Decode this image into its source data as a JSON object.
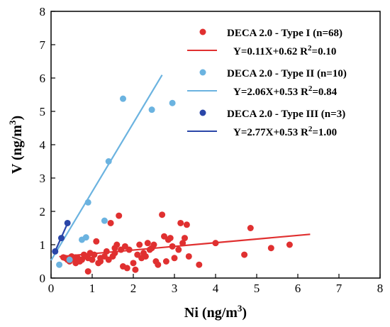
{
  "chart_data": {
    "type": "scatter",
    "x_axis": {
      "title": "Ni (ng/m",
      "title_sup": "3",
      "title_end": ")",
      "range": [
        0,
        8
      ],
      "ticks": [
        "0",
        "1",
        "2",
        "3",
        "4",
        "5",
        "6",
        "7",
        "8"
      ]
    },
    "y_axis": {
      "title": "V (ng/m",
      "title_sup": "3",
      "title_end": ")",
      "range": [
        0,
        8
      ],
      "ticks": [
        "0",
        "1",
        "2",
        "3",
        "4",
        "5",
        "6",
        "7",
        "8"
      ]
    },
    "grid": false,
    "legend_position": "top-right",
    "series": [
      {
        "name": "DECA 2.0 - Type I (n=68)",
        "color": "#e03030",
        "fit": {
          "label": "Y=0.11X+0.62 R",
          "label_sup": "2",
          "label_end": "=0.10",
          "slope": 0.11,
          "intercept": 0.62,
          "x_range": [
            0.2,
            6.3
          ]
        },
        "points": [
          [
            0.3,
            0.62
          ],
          [
            0.35,
            0.6
          ],
          [
            0.4,
            0.55
          ],
          [
            0.45,
            0.5
          ],
          [
            0.5,
            0.65
          ],
          [
            0.55,
            0.58
          ],
          [
            0.6,
            0.45
          ],
          [
            0.65,
            0.6
          ],
          [
            0.7,
            0.5
          ],
          [
            0.75,
            0.55
          ],
          [
            0.8,
            0.7
          ],
          [
            0.85,
            0.65
          ],
          [
            0.9,
            0.6
          ],
          [
            0.9,
            0.2
          ],
          [
            0.95,
            0.75
          ],
          [
            1.0,
            0.55
          ],
          [
            1.05,
            0.7
          ],
          [
            1.1,
            1.1
          ],
          [
            1.15,
            0.45
          ],
          [
            1.2,
            0.5
          ],
          [
            1.3,
            0.65
          ],
          [
            1.35,
            0.8
          ],
          [
            1.4,
            0.55
          ],
          [
            1.45,
            1.65
          ],
          [
            1.5,
            0.65
          ],
          [
            1.55,
            0.9
          ],
          [
            1.6,
            1.0
          ],
          [
            1.65,
            1.87
          ],
          [
            1.7,
            0.85
          ],
          [
            1.75,
            0.35
          ],
          [
            1.8,
            0.95
          ],
          [
            1.85,
            0.3
          ],
          [
            1.9,
            0.85
          ],
          [
            2.0,
            0.45
          ],
          [
            2.05,
            0.25
          ],
          [
            2.1,
            0.7
          ],
          [
            2.15,
            1.0
          ],
          [
            2.2,
            0.6
          ],
          [
            2.3,
            0.65
          ],
          [
            2.35,
            1.05
          ],
          [
            2.4,
            0.85
          ],
          [
            2.45,
            0.9
          ],
          [
            2.5,
            1.0
          ],
          [
            2.55,
            0.5
          ],
          [
            2.6,
            0.4
          ],
          [
            2.7,
            1.9
          ],
          [
            2.75,
            1.25
          ],
          [
            2.8,
            0.5
          ],
          [
            2.85,
            1.15
          ],
          [
            2.9,
            1.2
          ],
          [
            3.0,
            0.6
          ],
          [
            3.1,
            0.85
          ],
          [
            3.2,
            1.05
          ],
          [
            3.25,
            1.2
          ],
          [
            3.3,
            1.6
          ],
          [
            3.35,
            0.65
          ],
          [
            3.6,
            0.4
          ],
          [
            4.0,
            1.05
          ],
          [
            4.7,
            0.7
          ],
          [
            4.85,
            1.5
          ],
          [
            5.35,
            0.9
          ],
          [
            5.8,
            1.0
          ],
          [
            0.6,
            0.62
          ],
          [
            1.2,
            0.6
          ],
          [
            1.55,
            0.75
          ],
          [
            2.25,
            0.75
          ],
          [
            2.95,
            0.95
          ],
          [
            3.15,
            1.65
          ]
        ]
      },
      {
        "name": "DECA 2.0 - Type II (n=10)",
        "color": "#6bb3e0",
        "fit": {
          "label": "Y=2.06X+0.53 R",
          "label_sup": "2",
          "label_end": "=0.84",
          "slope": 2.06,
          "intercept": 0.53,
          "x_range": [
            0.0,
            2.7
          ]
        },
        "points": [
          [
            0.2,
            0.4
          ],
          [
            0.45,
            0.55
          ],
          [
            0.75,
            1.15
          ],
          [
            0.85,
            1.22
          ],
          [
            0.9,
            2.27
          ],
          [
            1.3,
            1.72
          ],
          [
            1.4,
            3.5
          ],
          [
            1.75,
            5.38
          ],
          [
            2.45,
            5.05
          ],
          [
            2.95,
            5.25
          ]
        ]
      },
      {
        "name": "DECA 2.0 - Type III (n=3)",
        "color": "#2a46a8",
        "fit": {
          "label": "Y=2.77X+0.53 R",
          "label_sup": "2",
          "label_end": "=1.00",
          "slope": 2.77,
          "intercept": 0.53,
          "x_range": [
            0.1,
            0.42
          ]
        },
        "points": [
          [
            0.1,
            0.8
          ],
          [
            0.25,
            1.2
          ],
          [
            0.4,
            1.65
          ]
        ]
      }
    ]
  }
}
